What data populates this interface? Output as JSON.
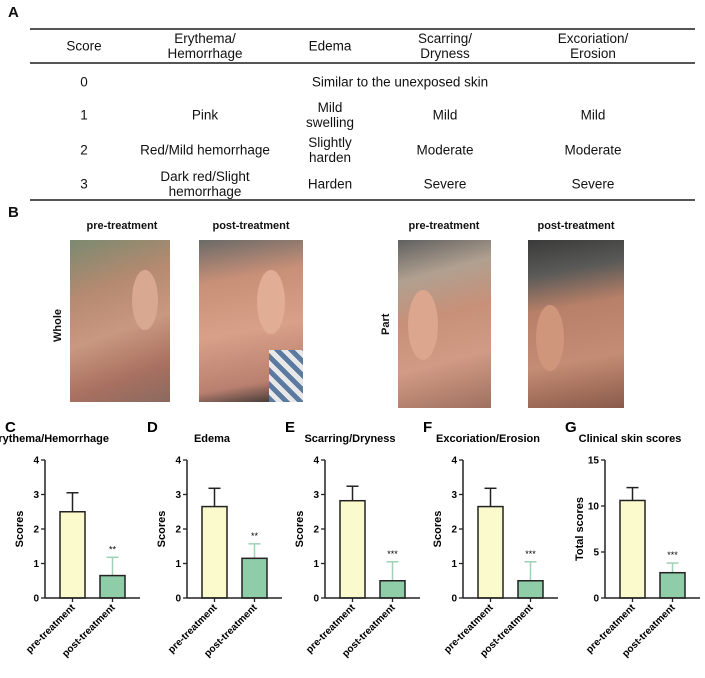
{
  "panels": {
    "A": "A",
    "B": "B",
    "C": "C",
    "D": "D",
    "E": "E",
    "F": "F",
    "G": "G"
  },
  "table": {
    "headers": [
      "Score",
      "Erythema/\nHemorrhage",
      "Edema",
      "Scarring/\nDryness",
      "Excoriation/\nErosion"
    ],
    "row0": {
      "score": "0",
      "merged": "Similar to the unexposed skin"
    },
    "rows": [
      [
        "1",
        "Pink",
        "Mild\nswelling",
        "Mild",
        "Mild"
      ],
      [
        "2",
        "Red/Mild hemorrhage",
        "Slightly\nharden",
        "Moderate",
        "Moderate"
      ],
      [
        "3",
        "Dark red/Slight\nhemorrhage",
        "Harden",
        "Severe",
        "Severe"
      ]
    ]
  },
  "photos": {
    "whole_label": "Whole",
    "part_label": "Part",
    "pre_label": "pre-treatment",
    "post_label": "post-treatment"
  },
  "colors": {
    "pre": "#fafacd",
    "post": "#8fcca8",
    "post_error": "#9fd1b6",
    "outline": "#222222"
  },
  "chart_data": [
    {
      "type": "bar",
      "title": "Erythema/Hemorrhage",
      "ylabel": "Scores",
      "ylim": [
        0,
        4
      ],
      "yticks": [
        0,
        1,
        2,
        3,
        4
      ],
      "categories": [
        "pre-treatment",
        "post-treatment"
      ],
      "values": [
        2.5,
        0.65
      ],
      "error_upper": [
        3.05,
        1.18
      ],
      "significance": [
        "",
        "**"
      ]
    },
    {
      "type": "bar",
      "title": "Edema",
      "ylabel": "Scores",
      "ylim": [
        0,
        4
      ],
      "yticks": [
        0,
        1,
        2,
        3,
        4
      ],
      "categories": [
        "pre-treatment",
        "post-treatment"
      ],
      "values": [
        2.65,
        1.15
      ],
      "error_upper": [
        3.18,
        1.57
      ],
      "significance": [
        "",
        "**"
      ]
    },
    {
      "type": "bar",
      "title": "Scarring/Dryness",
      "ylabel": "Scores",
      "ylim": [
        0,
        4
      ],
      "yticks": [
        0,
        1,
        2,
        3,
        4
      ],
      "categories": [
        "pre-treatment",
        "post-treatment"
      ],
      "values": [
        2.82,
        0.5
      ],
      "error_upper": [
        3.24,
        1.05
      ],
      "significance": [
        "",
        "***"
      ]
    },
    {
      "type": "bar",
      "title": "Excoriation/Erosion",
      "ylabel": "Scores",
      "ylim": [
        0,
        4
      ],
      "yticks": [
        0,
        1,
        2,
        3,
        4
      ],
      "categories": [
        "pre-treatment",
        "post-treatment"
      ],
      "values": [
        2.65,
        0.5
      ],
      "error_upper": [
        3.18,
        1.05
      ],
      "significance": [
        "",
        "***"
      ]
    },
    {
      "type": "bar",
      "title": "Clinical skin scores",
      "ylabel": "Total scores",
      "ylim": [
        0,
        15
      ],
      "yticks": [
        0,
        5,
        10,
        15
      ],
      "categories": [
        "pre-treatment",
        "post-treatment"
      ],
      "values": [
        10.6,
        2.75
      ],
      "error_upper": [
        12.0,
        3.8
      ],
      "significance": [
        "",
        "***"
      ]
    }
  ]
}
